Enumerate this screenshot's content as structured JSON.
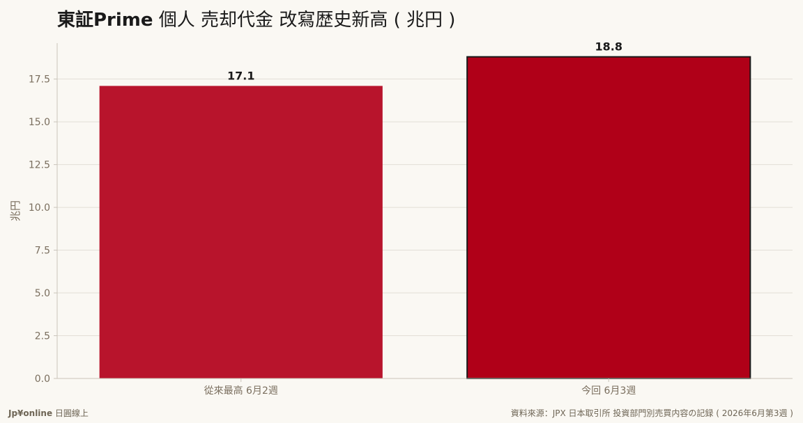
{
  "chart_data": {
    "type": "bar",
    "title_bold": "東証Prime",
    "title_rest": " 個人 売却代金 改寫歴史新高 ( 兆円 )",
    "ylabel": "兆円",
    "xlabel": "",
    "categories": [
      "從來最高 6月2週",
      "今回 6月3週"
    ],
    "values": [
      17.1,
      18.8
    ],
    "data_labels": [
      "17.1",
      "18.8"
    ],
    "bar_colors": [
      "#b8142c",
      "#b00018"
    ],
    "highlight_outline": [
      false,
      true
    ],
    "outline_color": "#1a1a1a",
    "ylim": [
      0,
      19.6
    ],
    "yticks": [
      0,
      2.5,
      5.0,
      7.5,
      10.0,
      12.5,
      15.0,
      17.5
    ],
    "ytick_labels": [
      "0.0",
      "2.5",
      "5.0",
      "7.5",
      "10.0",
      "12.5",
      "15.0",
      "17.5"
    ],
    "grid": true,
    "grid_axis": "y"
  },
  "footer": {
    "brand": "Jp¥online",
    "brand_suffix": " 日圓線上",
    "source": "資料來源：JPX 日本取引所 投資部門別売買内容の記録 ( 2026年6月第3週 )"
  },
  "colors": {
    "background": "#faf8f3",
    "grid": "#e2ded6",
    "axis": "#c9c4ba",
    "tick_text": "#7a6e5e"
  }
}
